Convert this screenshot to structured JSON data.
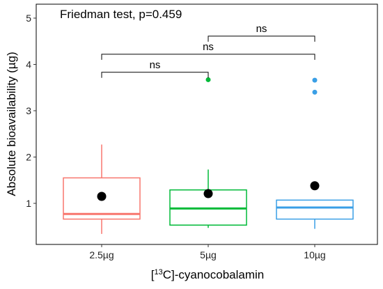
{
  "chart_data": {
    "type": "boxplot",
    "annotation": "Friedman test, p=0.459",
    "xlabel": {
      "sup": "13",
      "prefix": "[",
      "suffix": "C]-cyanocobalamin"
    },
    "ylabel": "Absolute bioavailability (µg)",
    "ylim": [
      0,
      5
    ],
    "yticks": [
      "1",
      "2",
      "3",
      "4",
      "5"
    ],
    "grid": false,
    "categories": [
      "2.5µg",
      "5µg",
      "10µg"
    ],
    "colors": [
      "#F8766D",
      "#00BA38",
      "#3A9FE6"
    ],
    "boxes": [
      {
        "category": "2.5µg",
        "whisker_low": 0.34,
        "q1": 0.66,
        "median": 0.77,
        "q3": 1.55,
        "whisker_high": 2.27,
        "mean": 1.15,
        "outliers": []
      },
      {
        "category": "5µg",
        "whisker_low": 0.47,
        "q1": 0.53,
        "median": 0.89,
        "q3": 1.29,
        "whisker_high": 1.73,
        "mean": 1.21,
        "outliers": [
          3.67
        ]
      },
      {
        "category": "10µg",
        "whisker_low": 0.45,
        "q1": 0.66,
        "median": 0.91,
        "q3": 1.07,
        "whisker_high": 1.07,
        "mean": 1.38,
        "outliers": [
          3.4,
          3.66
        ]
      }
    ],
    "comparisons": [
      {
        "groups": [
          "2.5µg",
          "5µg"
        ],
        "label": "ns",
        "y": 3.83
      },
      {
        "groups": [
          "2.5µg",
          "10µg"
        ],
        "label": "ns",
        "y": 4.22
      },
      {
        "groups": [
          "5µg",
          "10µg"
        ],
        "label": "ns",
        "y": 4.61
      }
    ]
  }
}
